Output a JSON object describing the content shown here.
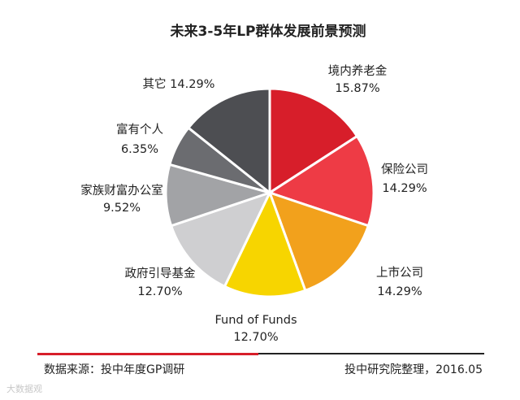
{
  "chart_data": {
    "type": "pie",
    "title": "未来3-5年LP群体发展前景预测",
    "slices": [
      {
        "name": "境内养老金",
        "value": 15.87,
        "label": "15.87%",
        "color": "#d71e2a"
      },
      {
        "name": "保险公司",
        "value": 14.29,
        "label": "14.29%",
        "color": "#ee3b45"
      },
      {
        "name": "上市公司",
        "value": 14.29,
        "label": "14.29%",
        "color": "#f2a11c"
      },
      {
        "name": "Fund of Funds",
        "value": 12.7,
        "label": "12.70%",
        "color": "#f7d500"
      },
      {
        "name": "政府引导基金",
        "value": 12.7,
        "label": "12.70%",
        "color": "#cfcfd1"
      },
      {
        "name": "家族财富办公室",
        "value": 9.52,
        "label": "9.52%",
        "color": "#a2a3a6"
      },
      {
        "name": "富有个人",
        "value": 6.35,
        "label": "6.35%",
        "color": "#6b6c70"
      },
      {
        "name": "其它",
        "value": 14.29,
        "label": "14.29%",
        "color": "#4d4e52"
      }
    ]
  },
  "footer": {
    "source": "数据来源：投中年度GP调研",
    "credit": "投中研究院整理，2016.05"
  },
  "watermark": "大数据观"
}
